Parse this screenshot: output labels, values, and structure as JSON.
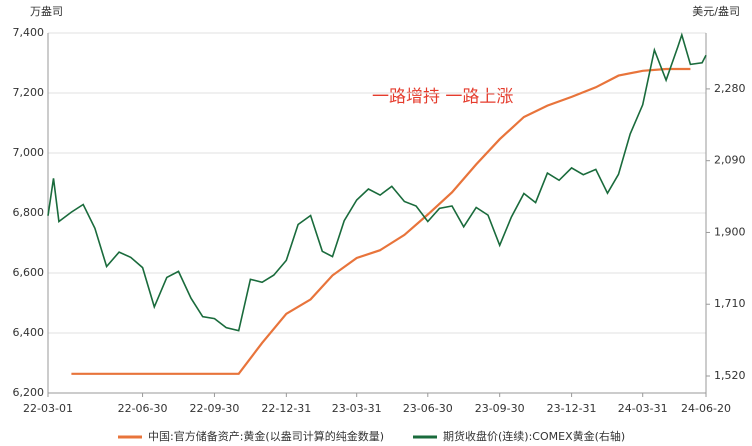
{
  "chart_data": {
    "type": "line",
    "annotation": "一路增持 一路上涨",
    "y_label": "万盎司",
    "y2_label": "美元/盎司",
    "xlim": [
      "22-03-01",
      "24-06-20"
    ],
    "xticks": [
      "22-03-01",
      "22-06-30",
      "22-09-30",
      "22-12-31",
      "23-03-31",
      "23-06-30",
      "23-09-30",
      "23-12-31",
      "24-03-31",
      "24-06-20"
    ],
    "ylim": [
      6200,
      7400
    ],
    "yticks": [
      {
        "value": 6200,
        "label": "6,200"
      },
      {
        "value": 6400,
        "label": "6,400"
      },
      {
        "value": 6600,
        "label": "6,600"
      },
      {
        "value": 6800,
        "label": "6,800"
      },
      {
        "value": 7000,
        "label": "7,000"
      },
      {
        "value": 7200,
        "label": "7,200"
      },
      {
        "value": 7400,
        "label": "7,400"
      }
    ],
    "y2lim": [
      1475,
      2428
    ],
    "y2ticks": [
      {
        "value": 1520,
        "label": "1,520"
      },
      {
        "value": 1710,
        "label": "1,710"
      },
      {
        "value": 1900,
        "label": "1,900"
      },
      {
        "value": 2090,
        "label": "2,090"
      },
      {
        "value": 2280,
        "label": "2,280"
      }
    ],
    "grid": true,
    "legend": "bottom",
    "series": [
      {
        "name": "中国:官方储备资产:黄金(以盎司计算的纯金数量)",
        "color": "#e8743b",
        "x": [
          "22-03-31",
          "22-04-30",
          "22-05-31",
          "22-06-30",
          "22-07-31",
          "22-08-31",
          "22-09-30",
          "22-10-31",
          "22-11-30",
          "22-12-31",
          "23-01-31",
          "23-02-28",
          "23-03-31",
          "23-04-30",
          "23-05-31",
          "23-06-30",
          "23-07-31",
          "23-08-31",
          "23-09-30",
          "23-10-31",
          "23-11-30",
          "23-12-31",
          "24-01-31",
          "24-02-29",
          "24-03-31",
          "24-04-30",
          "24-05-31"
        ],
        "values": [
          6264,
          6264,
          6264,
          6264,
          6264,
          6264,
          6264,
          6264,
          6367,
          6464,
          6512,
          6592,
          6650,
          6676,
          6727,
          6795,
          6869,
          6962,
          7046,
          7120,
          7158,
          7187,
          7219,
          7258,
          7274,
          7280,
          7280
        ]
      },
      {
        "name": "期货收盘价(连续):COMEX黄金(右轴)",
        "color": "#1a6b3c",
        "axis": "y2",
        "x": [
          "22-03-01",
          "22-03-08",
          "22-03-15",
          "22-03-31",
          "22-04-15",
          "22-04-30",
          "22-05-15",
          "22-05-31",
          "22-06-15",
          "22-06-30",
          "22-07-15",
          "22-07-31",
          "22-08-15",
          "22-08-31",
          "22-09-15",
          "22-09-30",
          "22-10-15",
          "22-10-31",
          "22-11-15",
          "22-11-30",
          "22-12-15",
          "22-12-31",
          "23-01-15",
          "23-01-31",
          "23-02-15",
          "23-02-28",
          "23-03-15",
          "23-03-31",
          "23-04-15",
          "23-04-30",
          "23-05-15",
          "23-05-31",
          "23-06-15",
          "23-06-30",
          "23-07-15",
          "23-07-31",
          "23-08-15",
          "23-08-31",
          "23-09-15",
          "23-09-30",
          "23-10-15",
          "23-10-31",
          "23-11-15",
          "23-11-30",
          "23-12-15",
          "23-12-31",
          "24-01-15",
          "24-01-31",
          "24-02-15",
          "24-02-29",
          "24-03-15",
          "24-03-31",
          "24-04-15",
          "24-04-30",
          "24-05-15",
          "24-05-20",
          "24-05-31",
          "24-06-15",
          "24-06-20"
        ],
        "values": [
          1944,
          2043,
          1929,
          1954,
          1974,
          1911,
          1810,
          1848,
          1834,
          1807,
          1703,
          1781,
          1797,
          1726,
          1677,
          1672,
          1648,
          1640,
          1776,
          1768,
          1787,
          1826,
          1921,
          1945,
          1850,
          1836,
          1931,
          1986,
          2015,
          1999,
          2022,
          1982,
          1970,
          1929,
          1964,
          1970,
          1915,
          1966,
          1946,
          1866,
          1941,
          2003,
          1979,
          2057,
          2038,
          2071,
          2053,
          2067,
          2004,
          2054,
          2161,
          2238,
          2383,
          2303,
          2392,
          2423,
          2345,
          2349,
          2369
        ]
      }
    ]
  }
}
